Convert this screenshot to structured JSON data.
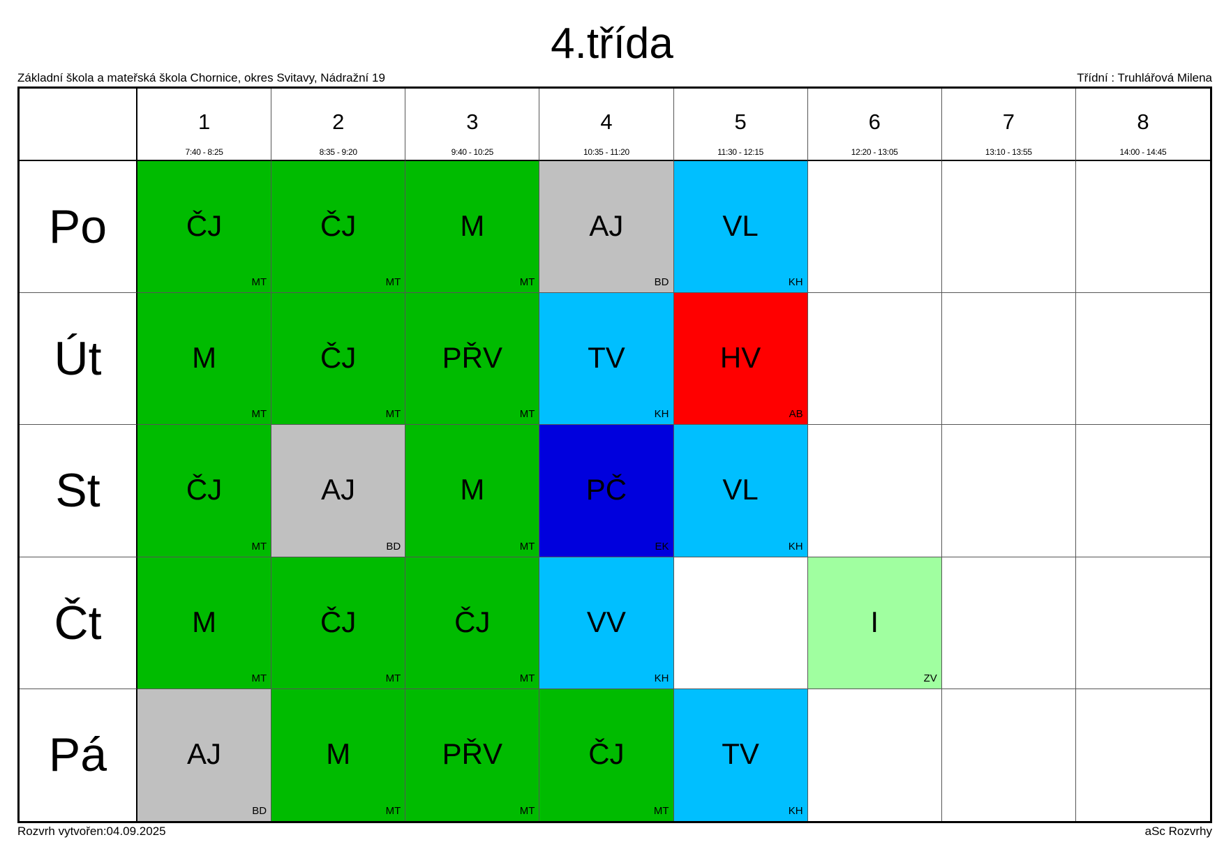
{
  "header": {
    "title": "4.třída",
    "school": "Základní škola a mateřská škola Chornice, okres Svitavy, Nádražní 19",
    "class_teacher": "Třídní : Truhlářová Milena"
  },
  "footer": {
    "created": "Rozvrh vytvořen:04.09.2025",
    "software": "aSc Rozvrhy"
  },
  "colors": {
    "green": "#00bb00",
    "gray": "#c0c0c0",
    "cyan": "#00bfff",
    "red": "#ff0000",
    "blue": "#0000dd",
    "lightgreen": "#a0ffa0",
    "empty": "#ffffff"
  },
  "periods": [
    {
      "num": "1",
      "time": "7:40 - 8:25"
    },
    {
      "num": "2",
      "time": "8:35 - 9:20"
    },
    {
      "num": "3",
      "time": "9:40 - 10:25"
    },
    {
      "num": "4",
      "time": "10:35 - 11:20"
    },
    {
      "num": "5",
      "time": "11:30 - 12:15"
    },
    {
      "num": "6",
      "time": "12:20 - 13:05"
    },
    {
      "num": "7",
      "time": "13:10 - 13:55"
    },
    {
      "num": "8",
      "time": "14:00 - 14:45"
    }
  ],
  "days": [
    {
      "label": "Po",
      "lessons": [
        {
          "subject": "ČJ",
          "teacher": "MT",
          "color": "green"
        },
        {
          "subject": "ČJ",
          "teacher": "MT",
          "color": "green"
        },
        {
          "subject": "M",
          "teacher": "MT",
          "color": "green"
        },
        {
          "subject": "AJ",
          "teacher": "BD",
          "color": "gray"
        },
        {
          "subject": "VL",
          "teacher": "KH",
          "color": "cyan"
        },
        null,
        null,
        null
      ]
    },
    {
      "label": "Út",
      "lessons": [
        {
          "subject": "M",
          "teacher": "MT",
          "color": "green"
        },
        {
          "subject": "ČJ",
          "teacher": "MT",
          "color": "green"
        },
        {
          "subject": "PŘV",
          "teacher": "MT",
          "color": "green"
        },
        {
          "subject": "TV",
          "teacher": "KH",
          "color": "cyan"
        },
        {
          "subject": "HV",
          "teacher": "AB",
          "color": "red"
        },
        null,
        null,
        null
      ]
    },
    {
      "label": "St",
      "lessons": [
        {
          "subject": "ČJ",
          "teacher": "MT",
          "color": "green"
        },
        {
          "subject": "AJ",
          "teacher": "BD",
          "color": "gray"
        },
        {
          "subject": "M",
          "teacher": "MT",
          "color": "green"
        },
        {
          "subject": "PČ",
          "teacher": "EK",
          "color": "blue"
        },
        {
          "subject": "VL",
          "teacher": "KH",
          "color": "cyan"
        },
        null,
        null,
        null
      ]
    },
    {
      "label": "Čt",
      "lessons": [
        {
          "subject": "M",
          "teacher": "MT",
          "color": "green"
        },
        {
          "subject": "ČJ",
          "teacher": "MT",
          "color": "green"
        },
        {
          "subject": "ČJ",
          "teacher": "MT",
          "color": "green"
        },
        {
          "subject": "VV",
          "teacher": "KH",
          "color": "cyan"
        },
        null,
        {
          "subject": "I",
          "teacher": "ZV",
          "color": "lightgreen"
        },
        null,
        null
      ]
    },
    {
      "label": "Pá",
      "lessons": [
        {
          "subject": "AJ",
          "teacher": "BD",
          "color": "gray"
        },
        {
          "subject": "M",
          "teacher": "MT",
          "color": "green"
        },
        {
          "subject": "PŘV",
          "teacher": "MT",
          "color": "green"
        },
        {
          "subject": "ČJ",
          "teacher": "MT",
          "color": "green"
        },
        {
          "subject": "TV",
          "teacher": "KH",
          "color": "cyan"
        },
        null,
        null,
        null
      ]
    }
  ]
}
